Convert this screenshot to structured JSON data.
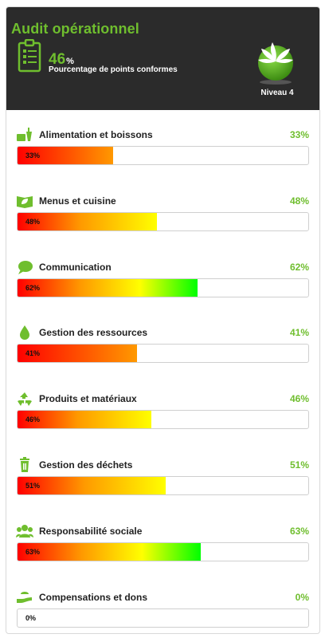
{
  "header": {
    "title": "Audit opérationnel",
    "score_value": "46",
    "score_unit": "%",
    "score_caption": "Pourcentage de points conformes",
    "level_label": "Niveau 4"
  },
  "colors": {
    "accent": "#6fbe2e",
    "header_bg": "#2b2b2b",
    "gradient_red": "#ff0000",
    "gradient_orange": "#ff9900",
    "gradient_yellow": "#ffff00",
    "gradient_green": "#00ff00"
  },
  "categories": [
    {
      "name": "Alimentation et boissons",
      "percent_label": "33%",
      "bar_label": "33%",
      "value": 33,
      "icon": "food-drink-icon"
    },
    {
      "name": "Menus et cuisine",
      "percent_label": "48%",
      "bar_label": "48%",
      "value": 48,
      "icon": "menu-leaf-icon"
    },
    {
      "name": "Communication",
      "percent_label": "62%",
      "bar_label": "62%",
      "value": 62,
      "icon": "speech-bubble-icon"
    },
    {
      "name": "Gestion des ressources",
      "percent_label": "41%",
      "bar_label": "41%",
      "value": 41,
      "icon": "water-drop-icon"
    },
    {
      "name": "Produits et matériaux",
      "percent_label": "46%",
      "bar_label": "46%",
      "value": 46,
      "icon": "recycle-icon"
    },
    {
      "name": "Gestion des déchets",
      "percent_label": "51%",
      "bar_label": "51%",
      "value": 51,
      "icon": "trash-icon"
    },
    {
      "name": "Responsabilité sociale",
      "percent_label": "63%",
      "bar_label": "63%",
      "value": 63,
      "icon": "people-icon"
    },
    {
      "name": "Compensations et dons",
      "percent_label": "0%",
      "bar_label": "0%",
      "value": 0,
      "icon": "giving-hand-icon"
    }
  ]
}
